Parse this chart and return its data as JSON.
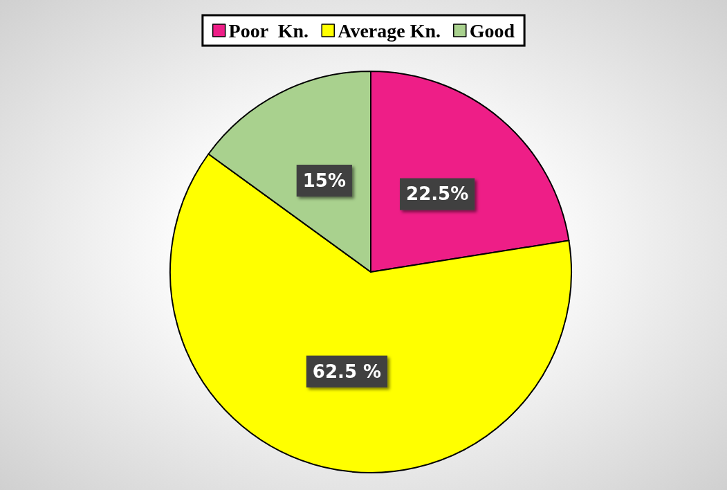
{
  "chart_data": {
    "type": "pie",
    "categories": [
      "Poor  Kn.",
      "Average Kn.",
      "Good"
    ],
    "values": [
      22.5,
      62.5,
      15
    ],
    "colors": [
      "#ee1e87",
      "#ffff00",
      "#a9d18e"
    ],
    "value_labels": [
      "22.5%",
      "62.5 %",
      "15%"
    ],
    "legend": "top"
  }
}
